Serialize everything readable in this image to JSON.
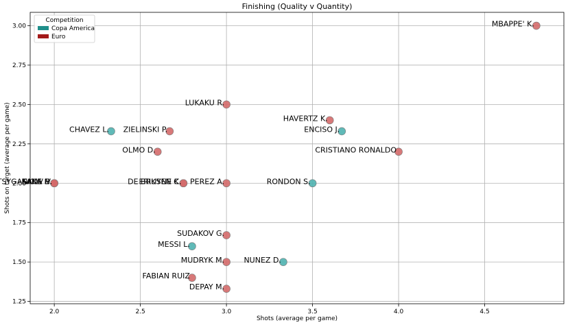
{
  "chart_data": {
    "type": "scatter",
    "title": "Finishing (Quality v Quantity)",
    "xlabel": "Shots (average per game)",
    "ylabel": "Shots on target (average per game)",
    "xlim": [
      1.86,
      4.96
    ],
    "ylim": [
      1.235,
      3.085
    ],
    "xticks": [
      "2.0",
      "2.5",
      "3.0",
      "3.5",
      "4.0",
      "4.5"
    ],
    "xtick_values": [
      2.0,
      2.5,
      3.0,
      3.5,
      4.0,
      4.5
    ],
    "yticks": [
      "1.25",
      "1.50",
      "1.75",
      "2.00",
      "2.25",
      "2.50",
      "2.75",
      "3.00"
    ],
    "ytick_values": [
      1.25,
      1.5,
      1.75,
      2.0,
      2.25,
      2.5,
      2.75,
      3.0
    ],
    "grid": true,
    "legend": {
      "title": "Competition",
      "placement": "top-left",
      "entries": [
        {
          "name": "Copa America",
          "color": "#1f8f8a"
        },
        {
          "name": "Euro",
          "color": "#a31a1a"
        }
      ]
    },
    "series": [
      {
        "name": "Copa America",
        "color": "#4fb3b0",
        "points": [
          {
            "label": "CHAVEZ L.",
            "x": 2.33,
            "y": 2.33
          },
          {
            "label": "ENCISO J.",
            "x": 3.67,
            "y": 2.33
          },
          {
            "label": "RONDON S.",
            "x": 3.5,
            "y": 2.0
          },
          {
            "label": "MESSI L.",
            "x": 2.8,
            "y": 1.6
          },
          {
            "label": "NUNEZ D.",
            "x": 3.33,
            "y": 1.5
          }
        ]
      },
      {
        "name": "Euro",
        "color": "#d46a6a",
        "points": [
          {
            "label": "MBAPPE' K.",
            "x": 4.8,
            "y": 3.0
          },
          {
            "label": "LUKAKU R.",
            "x": 3.0,
            "y": 2.5
          },
          {
            "label": "HAVERTZ K.",
            "x": 3.6,
            "y": 2.4
          },
          {
            "label": "ZIELINSKI P.",
            "x": 2.67,
            "y": 2.33
          },
          {
            "label": "CRISTIANO RONALDO",
            "x": 4.0,
            "y": 2.2
          },
          {
            "label": "OLMO D.",
            "x": 2.6,
            "y": 2.2
          },
          {
            "label": "PEREZ A.",
            "x": 3.0,
            "y": 2.0
          },
          {
            "label": "DE BRUYNE K.",
            "x": 2.75,
            "y": 2.0
          },
          {
            "label": "ERIKSEN C.",
            "x": 2.75,
            "y": 2.0
          },
          {
            "label": "TSYGANKOV V.",
            "x": 2.0,
            "y": 2.0
          },
          {
            "label": "SAKA B.",
            "x": 2.0,
            "y": 2.0
          },
          {
            "label": "KANE H.",
            "x": 2.0,
            "y": 2.0
          },
          {
            "label": "SUDAKOV G.",
            "x": 3.0,
            "y": 1.67
          },
          {
            "label": "MUDRYK M.",
            "x": 3.0,
            "y": 1.5
          },
          {
            "label": "FABIAN RUIZ",
            "x": 2.8,
            "y": 1.4
          },
          {
            "label": "DEPAY M.",
            "x": 3.0,
            "y": 1.33
          }
        ]
      }
    ]
  }
}
